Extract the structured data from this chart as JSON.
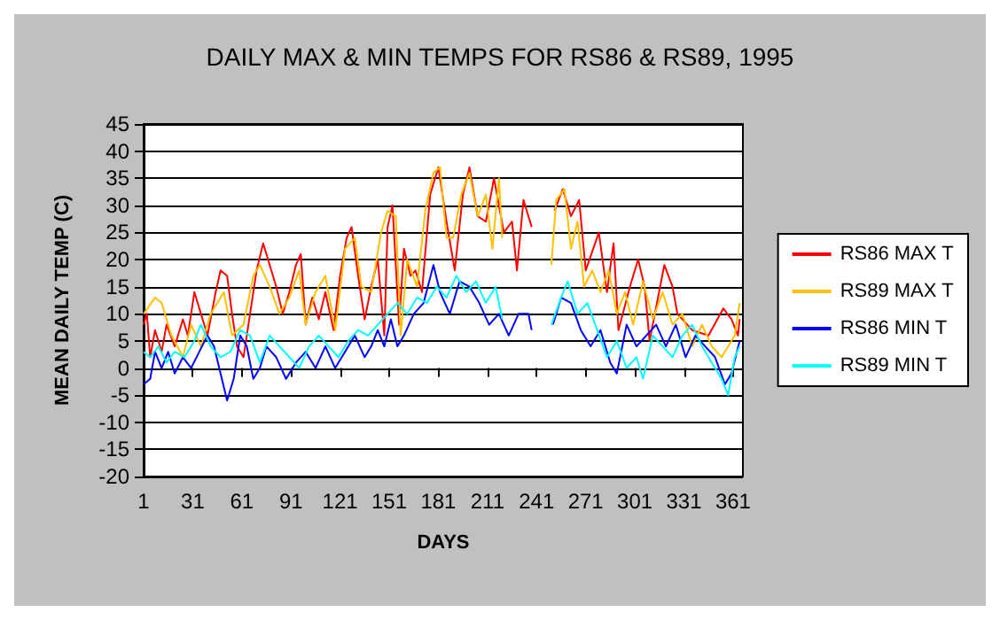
{
  "chart_data": {
    "type": "line",
    "title": "DAILY MAX & MIN TEMPS FOR RS86 & RS89, 1995",
    "xlabel": "DAYS",
    "ylabel": "MEAN DAILY TEMP (C)",
    "xlim": [
      1,
      367
    ],
    "xticks": [
      1,
      31,
      61,
      91,
      121,
      151,
      181,
      211,
      241,
      271,
      301,
      331,
      361
    ],
    "ylim": [
      -20,
      45
    ],
    "yticks": [
      -20,
      -15,
      -10,
      -5,
      0,
      5,
      10,
      15,
      20,
      25,
      30,
      35,
      40,
      45
    ],
    "grid": "y",
    "legend": "right",
    "marker": "none",
    "line_style": "solid",
    "series": [
      {
        "name": "RS86 MAX T",
        "color": "#ff0000",
        "x": [
          1,
          3,
          5,
          8,
          12,
          15,
          20,
          25,
          28,
          32,
          36,
          40,
          45,
          48,
          52,
          55,
          58,
          62,
          66,
          70,
          74,
          78,
          82,
          86,
          90,
          94,
          97,
          100,
          104,
          108,
          112,
          117,
          121,
          125,
          128,
          132,
          136,
          140,
          144,
          148,
          150,
          153,
          157,
          160,
          164,
          167,
          171,
          176,
          181,
          186,
          191,
          196,
          200,
          205,
          210,
          215,
          221,
          226,
          229,
          233,
          238,
          245,
          252,
          257,
          262,
          267,
          271,
          279,
          284,
          288,
          291,
          298,
          303,
          307,
          310,
          319,
          324,
          327,
          336,
          346,
          355,
          360,
          364,
          365
        ],
        "values": [
          8,
          10,
          2,
          7,
          3,
          8,
          4,
          9,
          6,
          14,
          10,
          6,
          14,
          18,
          17,
          10,
          4,
          2,
          10,
          18,
          23,
          19,
          15,
          10,
          14,
          19,
          21,
          8,
          13,
          9,
          14,
          7,
          17,
          24,
          26,
          17,
          9,
          15,
          20,
          6,
          26,
          30,
          8,
          22,
          17,
          18,
          14,
          32,
          37,
          27,
          18,
          32,
          37,
          28,
          27,
          35,
          25,
          27,
          18,
          31,
          26,
          null,
          29,
          33,
          28,
          31,
          18,
          25,
          14,
          23,
          7,
          15,
          20,
          15,
          5,
          19,
          15,
          10,
          7,
          6,
          11,
          9,
          6,
          9
        ]
      },
      {
        "name": "RS89 MAX T",
        "color": "#ffc000",
        "x": [
          1,
          8,
          12,
          18,
          25,
          30,
          36,
          42,
          50,
          55,
          62,
          68,
          72,
          78,
          84,
          90,
          96,
          100,
          106,
          112,
          118,
          124,
          130,
          134,
          140,
          146,
          150,
          155,
          158,
          162,
          168,
          173,
          178,
          182,
          186,
          190,
          195,
          200,
          205,
          210,
          214,
          218,
          220,
          235,
          250,
          253,
          258,
          262,
          266,
          270,
          275,
          280,
          285,
          290,
          295,
          300,
          306,
          312,
          318,
          324,
          330,
          336,
          342,
          348,
          354,
          358,
          362,
          365
        ],
        "values": [
          10,
          13,
          12,
          6,
          2,
          8,
          4,
          10,
          14,
          6,
          8,
          17,
          19,
          15,
          10,
          13,
          18,
          8,
          14,
          17,
          7,
          22,
          24,
          15,
          14,
          25,
          29,
          28,
          6,
          20,
          15,
          29,
          36,
          37,
          24,
          24,
          32,
          36,
          28,
          32,
          22,
          35,
          24,
          null,
          19,
          31,
          33,
          22,
          27,
          15,
          18,
          14,
          18,
          10,
          14,
          8,
          16,
          9,
          14,
          8,
          10,
          4,
          8,
          4,
          2,
          4,
          6,
          12
        ]
      },
      {
        "name": "RS86 MIN T",
        "color": "#0000ff",
        "x": [
          1,
          5,
          8,
          12,
          16,
          20,
          25,
          30,
          35,
          40,
          44,
          48,
          52,
          56,
          60,
          64,
          68,
          72,
          76,
          82,
          88,
          94,
          100,
          106,
          112,
          118,
          124,
          130,
          136,
          140,
          144,
          148,
          152,
          156,
          160,
          166,
          172,
          178,
          182,
          188,
          194,
          200,
          206,
          212,
          218,
          224,
          230,
          236,
          238,
          245,
          251,
          256,
          262,
          268,
          274,
          280,
          286,
          290,
          296,
          302,
          308,
          314,
          320,
          326,
          332,
          338,
          344,
          350,
          356,
          360,
          365
        ],
        "values": [
          -3,
          -2,
          3,
          0,
          3,
          -1,
          2,
          0,
          3,
          6,
          4,
          -1,
          -6,
          -2,
          6,
          4,
          -2,
          0,
          4,
          2,
          -2,
          1,
          3,
          0,
          4,
          0,
          3,
          6,
          2,
          4,
          7,
          4,
          9,
          4,
          6,
          10,
          12,
          19,
          14,
          10,
          16,
          15,
          12,
          8,
          10,
          6,
          10,
          10,
          7,
          null,
          8,
          13,
          12,
          7,
          4,
          7,
          1,
          -1,
          8,
          4,
          6,
          8,
          4,
          8,
          2,
          6,
          4,
          2,
          -3,
          -1,
          5
        ]
      },
      {
        "name": "RS89 MIN T",
        "color": "#00ffff",
        "x": [
          1,
          5,
          10,
          15,
          20,
          26,
          32,
          36,
          42,
          48,
          54,
          60,
          66,
          72,
          78,
          84,
          90,
          96,
          102,
          108,
          114,
          120,
          126,
          132,
          138,
          144,
          150,
          156,
          162,
          168,
          174,
          180,
          186,
          192,
          198,
          204,
          210,
          216,
          220,
          235,
          250,
          256,
          260,
          266,
          272,
          278,
          284,
          290,
          296,
          302,
          306,
          312,
          318,
          324,
          330,
          336,
          342,
          348,
          354,
          358,
          362,
          365
        ],
        "values": [
          3,
          2,
          4,
          1,
          3,
          2,
          5,
          8,
          4,
          2,
          3,
          7,
          6,
          1,
          6,
          4,
          2,
          0,
          4,
          6,
          4,
          2,
          5,
          7,
          6,
          8,
          10,
          12,
          10,
          13,
          12,
          15,
          13,
          17,
          14,
          16,
          12,
          15,
          9,
          null,
          8,
          13,
          16,
          10,
          12,
          7,
          2,
          5,
          0,
          2,
          -2,
          6,
          4,
          2,
          6,
          8,
          4,
          1,
          -2,
          -5,
          2,
          4
        ]
      }
    ]
  }
}
